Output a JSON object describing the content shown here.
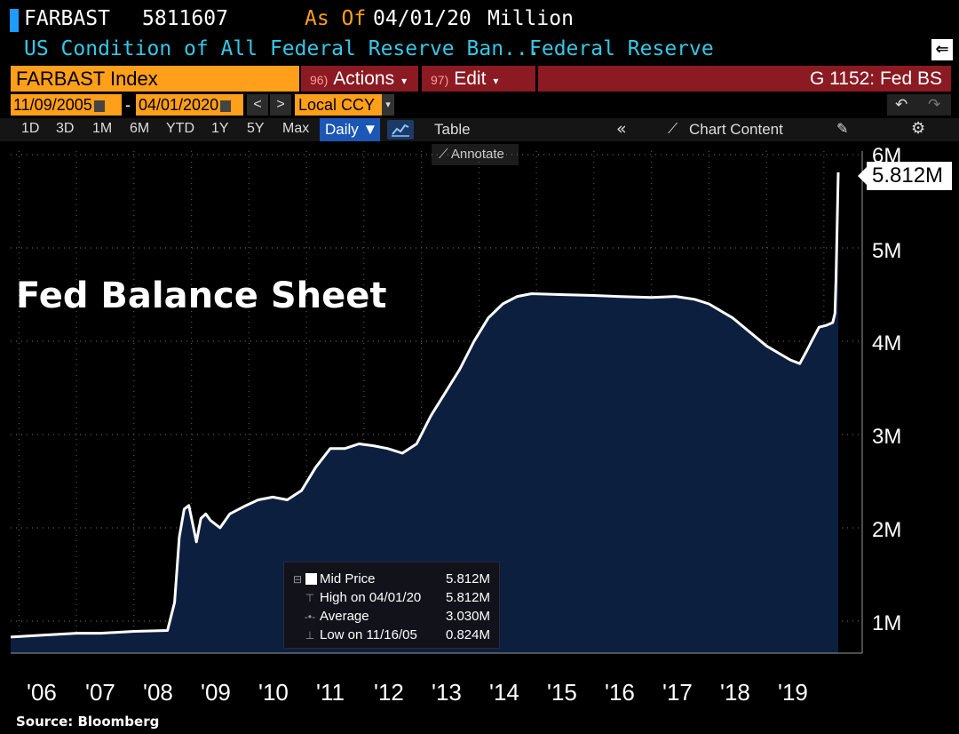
{
  "header": {
    "ticker": "FARBAST",
    "last_value": "5811607",
    "as_of_label": "As Of",
    "as_of_date": "04/01/20",
    "unit": "Million",
    "description": "US Condition of All Federal Reserve Ban...",
    "source_name": "Federal Reserve"
  },
  "toolbar": {
    "index_label": "FARBAST Index",
    "actions_num": "96)",
    "actions_label": "Actions",
    "edit_num": "97)",
    "edit_label": "Edit",
    "chart_name": "G 1152: Fed BS"
  },
  "range": {
    "start_date": "11/09/2005",
    "dash": "-",
    "end_date": "04/01/2020",
    "prev": "<",
    "next": ">",
    "currency": "Local CCY"
  },
  "periods": [
    "1D",
    "3D",
    "1M",
    "6M",
    "YTD",
    "1Y",
    "5Y",
    "Max"
  ],
  "frequency_label": "Daily ▼",
  "table_label": "Table",
  "chart_content_label": "Chart Content",
  "annotate_label": "Annotate",
  "chart_title": "Fed Balance Sheet",
  "last_price_label": "5.812M",
  "legend": {
    "mid_label": "Mid Price",
    "mid_value": "5.812M",
    "high_label": "High on 04/01/20",
    "high_value": "5.812M",
    "avg_label": "Average",
    "avg_value": "3.030M",
    "low_label": "Low on 11/16/05",
    "low_value": "0.824M"
  },
  "source_text": "Source: Bloomberg",
  "colors": {
    "accent": "#ff9f1a",
    "area_fill": "#0d1f3f",
    "line": "#ffffff",
    "desc": "#35c8e6",
    "toolbar_red": "#8b1a22"
  },
  "chart_data": {
    "type": "area",
    "title": "Fed Balance Sheet",
    "ylabel_unit": "M",
    "y_ticks": [
      "1M",
      "2M",
      "3M",
      "4M",
      "5M",
      "6M"
    ],
    "x_ticks": [
      "'06",
      "'07",
      "'08",
      "'09",
      "'10",
      "'11",
      "'12",
      "'13",
      "'14",
      "'15",
      "'16",
      "'17",
      "'18",
      "'19"
    ],
    "ylim": [
      0.7,
      6.1
    ],
    "xlim": [
      "2005-11-09",
      "2020-04-01"
    ],
    "series": [
      {
        "name": "Mid Price",
        "x": [
          "2005-11-09",
          "2006-06-01",
          "2007-01-01",
          "2007-06-01",
          "2008-01-01",
          "2008-08-01",
          "2008-09-15",
          "2008-10-15",
          "2008-11-15",
          "2008-12-15",
          "2009-02-01",
          "2009-03-01",
          "2009-04-01",
          "2009-05-01",
          "2009-07-01",
          "2009-09-01",
          "2009-12-01",
          "2010-03-01",
          "2010-06-01",
          "2010-09-01",
          "2010-12-01",
          "2011-03-01",
          "2011-06-01",
          "2011-09-01",
          "2011-12-01",
          "2012-03-01",
          "2012-06-01",
          "2012-09-01",
          "2012-12-01",
          "2013-03-01",
          "2013-06-01",
          "2013-09-01",
          "2013-12-01",
          "2014-03-01",
          "2014-06-01",
          "2014-09-01",
          "2014-12-01",
          "2015-06-01",
          "2016-01-01",
          "2016-06-01",
          "2017-01-01",
          "2017-06-01",
          "2017-10-01",
          "2018-01-01",
          "2018-06-01",
          "2019-01-01",
          "2019-06-01",
          "2019-08-01",
          "2019-09-15",
          "2019-10-15",
          "2019-12-01",
          "2020-01-15",
          "2020-02-26",
          "2020-03-11",
          "2020-03-18",
          "2020-03-25",
          "2020-04-01"
        ],
        "y": [
          0.83,
          0.85,
          0.87,
          0.87,
          0.89,
          0.9,
          1.2,
          1.9,
          2.2,
          2.24,
          1.85,
          2.1,
          2.15,
          2.08,
          2.0,
          2.15,
          2.23,
          2.3,
          2.33,
          2.3,
          2.4,
          2.65,
          2.85,
          2.85,
          2.9,
          2.88,
          2.85,
          2.8,
          2.9,
          3.2,
          3.45,
          3.7,
          4.0,
          4.25,
          4.4,
          4.48,
          4.51,
          4.5,
          4.49,
          4.48,
          4.47,
          4.48,
          4.45,
          4.4,
          4.25,
          3.95,
          3.8,
          3.76,
          3.9,
          4.0,
          4.15,
          4.17,
          4.2,
          4.3,
          4.67,
          5.25,
          5.81
        ]
      }
    ]
  }
}
